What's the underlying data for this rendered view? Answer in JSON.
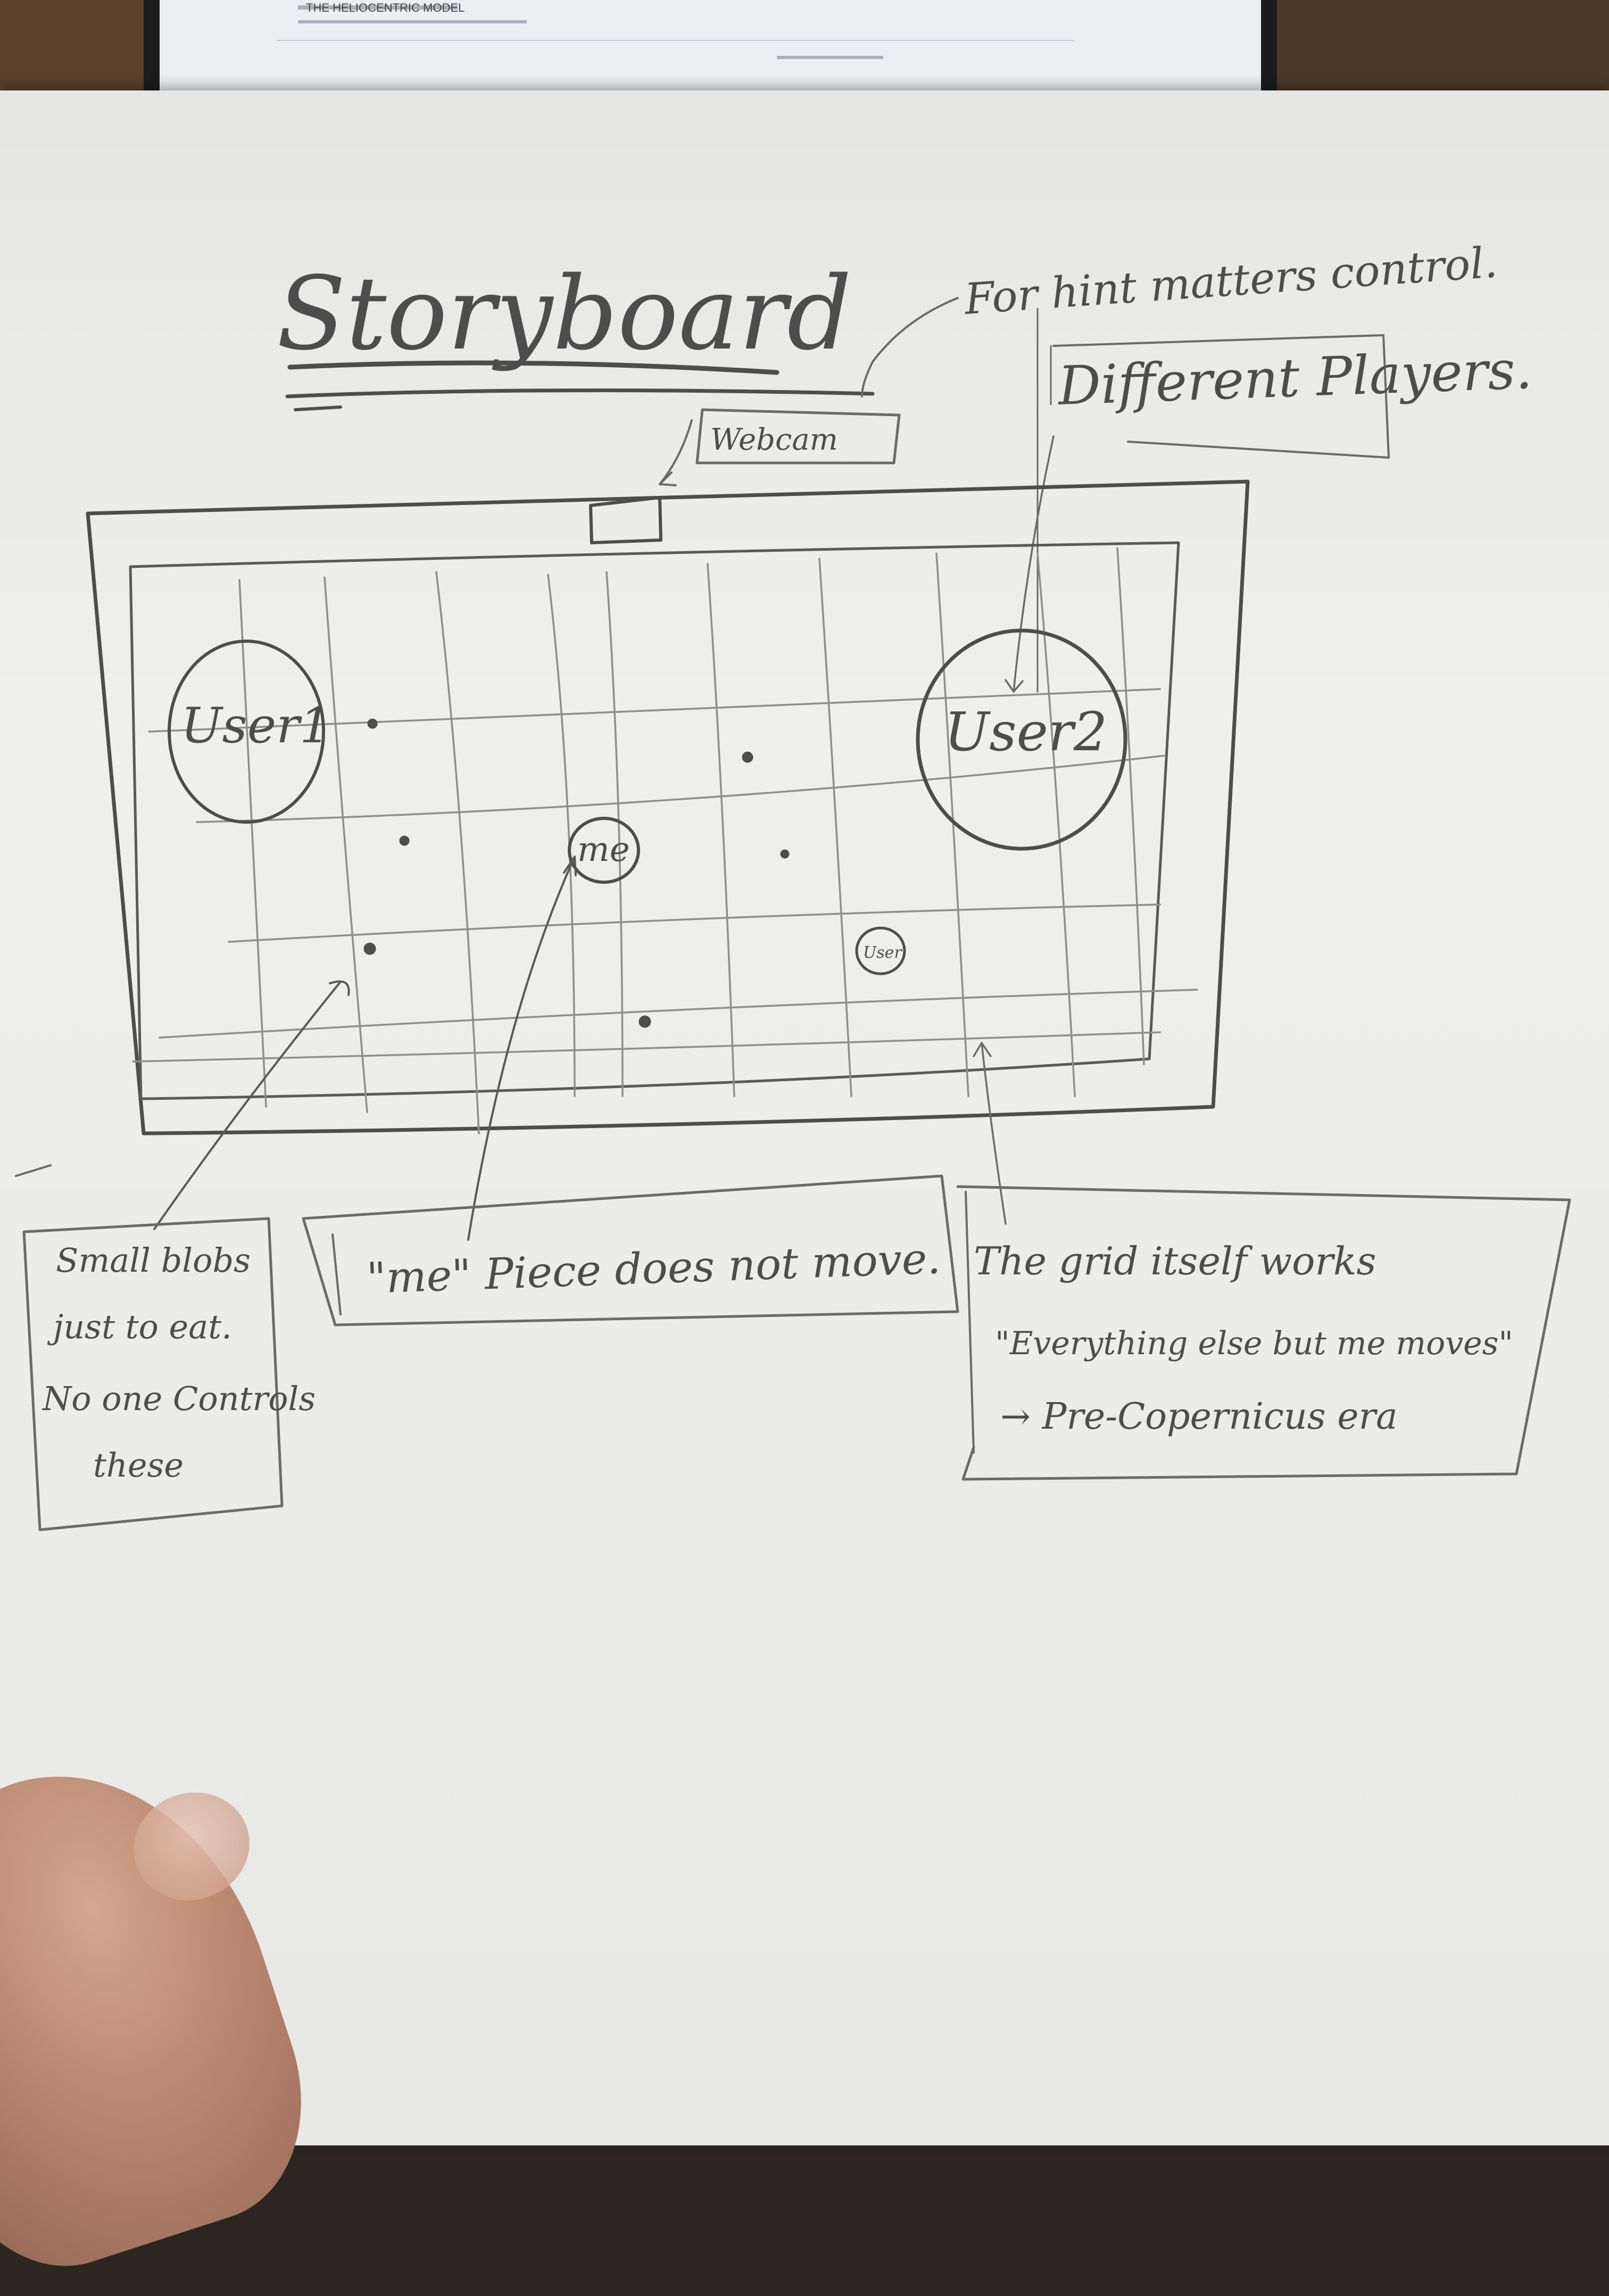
{
  "screen": {
    "line_1": "THE HELIOCENTRIC MODEL"
  },
  "sketch": {
    "title": "Storyboard",
    "notes": {
      "multi_control": "For hint matters control.",
      "different_players": "Different Players.",
      "webcam": "Webcam"
    },
    "grid_labels": {
      "user1": "User1",
      "user2": "User2",
      "me": "me",
      "small_user": "User"
    },
    "boxes": {
      "blobs": [
        "Small blobs",
        "just to eat.",
        "No one Controls",
        "these"
      ],
      "me_piece": "\"me\" Piece does not move.",
      "grid_note": [
        "The grid itself works",
        "\"Everything else but me moves\"",
        "→ Pre-Copernicus era"
      ]
    }
  },
  "colors": {
    "pencil": "#4d4d4d",
    "paper": "#efefed",
    "desk": "#5a3f2a"
  }
}
